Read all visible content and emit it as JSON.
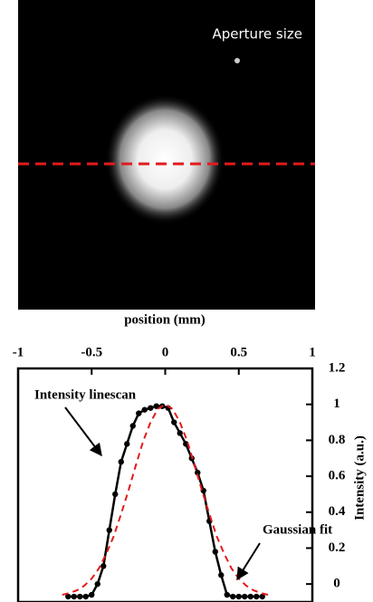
{
  "image": {
    "label": "Aperture size"
  },
  "chart_data": {
    "type": "line",
    "xlabel": "position (mm)",
    "ylabel": "Intensity (a.u.)",
    "xlim": [
      -1,
      1
    ],
    "xticks": [
      -1,
      -0.5,
      0,
      0.5,
      1
    ],
    "ylim": [
      -0.1,
      1.2
    ],
    "yticks": [
      0,
      0.2,
      0.4,
      0.6,
      0.8,
      1,
      1.2
    ],
    "series": [
      {
        "name": "Intensity linescan",
        "color": "#000000",
        "markers": true,
        "x": [
          -0.66,
          -0.62,
          -0.58,
          -0.54,
          -0.5,
          -0.46,
          -0.42,
          -0.38,
          -0.34,
          -0.3,
          -0.26,
          -0.22,
          -0.18,
          -0.14,
          -0.1,
          -0.06,
          -0.02,
          0.02,
          0.06,
          0.1,
          0.14,
          0.18,
          0.22,
          0.26,
          0.3,
          0.34,
          0.38,
          0.42,
          0.46,
          0.5,
          0.54,
          0.58,
          0.62,
          0.66
        ],
        "values": [
          -0.07,
          -0.07,
          -0.07,
          -0.07,
          -0.06,
          0.0,
          0.1,
          0.3,
          0.5,
          0.68,
          0.78,
          0.88,
          0.95,
          0.97,
          0.98,
          0.99,
          0.99,
          0.98,
          0.9,
          0.84,
          0.78,
          0.7,
          0.62,
          0.52,
          0.35,
          0.18,
          0.05,
          -0.06,
          -0.07,
          -0.07,
          -0.07,
          -0.07,
          -0.07,
          -0.07
        ]
      },
      {
        "name": "Gaussian fit",
        "color": "#e41a1c",
        "dashed": true,
        "x": [
          -0.7,
          -0.65,
          -0.6,
          -0.55,
          -0.5,
          -0.45,
          -0.4,
          -0.35,
          -0.3,
          -0.25,
          -0.2,
          -0.15,
          -0.1,
          -0.05,
          0,
          0.05,
          0.1,
          0.15,
          0.2,
          0.25,
          0.3,
          0.35,
          0.4,
          0.45,
          0.5,
          0.55,
          0.6,
          0.65,
          0.7
        ],
        "values": [
          -0.06,
          -0.05,
          -0.035,
          -0.009,
          0.03,
          0.088,
          0.17,
          0.266,
          0.39,
          0.52,
          0.66,
          0.795,
          0.9,
          0.975,
          1.0,
          0.975,
          0.9,
          0.795,
          0.66,
          0.52,
          0.39,
          0.266,
          0.17,
          0.088,
          0.03,
          -0.009,
          -0.035,
          -0.05,
          -0.06
        ]
      }
    ]
  }
}
